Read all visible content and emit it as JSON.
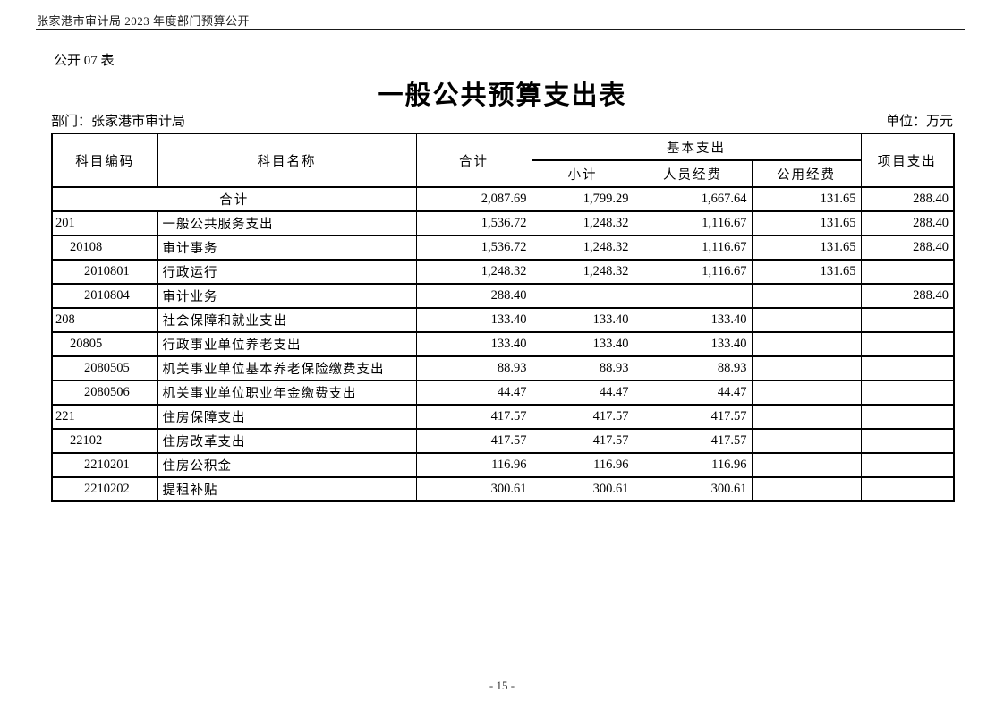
{
  "page": {
    "running_header": "张家港市审计局 2023 年度部门预算公开",
    "table_label": "公开 07 表",
    "title": "一般公共预算支出表",
    "department_label": "部门：张家港市审计局",
    "unit_label": "单位：万元",
    "page_number": "- 15 -"
  },
  "table": {
    "headers": {
      "code": "科目编码",
      "name": "科目名称",
      "total": "合计",
      "basic": "基本支出",
      "subtotal": "小计",
      "personnel": "人员经费",
      "public": "公用经费",
      "project": "项目支出"
    },
    "summary_row": {
      "label": "合计",
      "total": "2,087.69",
      "subtotal": "1,799.29",
      "personnel": "1,667.64",
      "public": "131.65",
      "project": "288.40"
    },
    "rows": [
      {
        "code": "201",
        "level": 1,
        "name": "一般公共服务支出",
        "total": "1,536.72",
        "subtotal": "1,248.32",
        "personnel": "1,116.67",
        "public": "131.65",
        "project": "288.40"
      },
      {
        "code": "20108",
        "level": 2,
        "name": "审计事务",
        "total": "1,536.72",
        "subtotal": "1,248.32",
        "personnel": "1,116.67",
        "public": "131.65",
        "project": "288.40"
      },
      {
        "code": "2010801",
        "level": 3,
        "name": "行政运行",
        "total": "1,248.32",
        "subtotal": "1,248.32",
        "personnel": "1,116.67",
        "public": "131.65",
        "project": ""
      },
      {
        "code": "2010804",
        "level": 3,
        "name": "审计业务",
        "total": "288.40",
        "subtotal": "",
        "personnel": "",
        "public": "",
        "project": "288.40"
      },
      {
        "code": "208",
        "level": 1,
        "name": "社会保障和就业支出",
        "total": "133.40",
        "subtotal": "133.40",
        "personnel": "133.40",
        "public": "",
        "project": ""
      },
      {
        "code": "20805",
        "level": 2,
        "name": "行政事业单位养老支出",
        "total": "133.40",
        "subtotal": "133.40",
        "personnel": "133.40",
        "public": "",
        "project": ""
      },
      {
        "code": "2080505",
        "level": 3,
        "name": "机关事业单位基本养老保险缴费支出",
        "total": "88.93",
        "subtotal": "88.93",
        "personnel": "88.93",
        "public": "",
        "project": ""
      },
      {
        "code": "2080506",
        "level": 3,
        "name": "机关事业单位职业年金缴费支出",
        "total": "44.47",
        "subtotal": "44.47",
        "personnel": "44.47",
        "public": "",
        "project": ""
      },
      {
        "code": "221",
        "level": 1,
        "name": "住房保障支出",
        "total": "417.57",
        "subtotal": "417.57",
        "personnel": "417.57",
        "public": "",
        "project": ""
      },
      {
        "code": "22102",
        "level": 2,
        "name": "住房改革支出",
        "total": "417.57",
        "subtotal": "417.57",
        "personnel": "417.57",
        "public": "",
        "project": ""
      },
      {
        "code": "2210201",
        "level": 3,
        "name": "住房公积金",
        "total": "116.96",
        "subtotal": "116.96",
        "personnel": "116.96",
        "public": "",
        "project": ""
      },
      {
        "code": "2210202",
        "level": 3,
        "name": "提租补贴",
        "total": "300.61",
        "subtotal": "300.61",
        "personnel": "300.61",
        "public": "",
        "project": ""
      }
    ]
  }
}
